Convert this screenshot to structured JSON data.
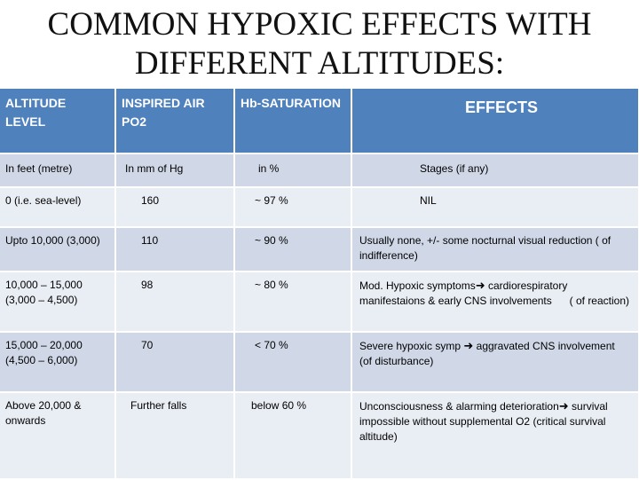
{
  "title": {
    "line1": "COMMON HYPOXIC EFFECTS WITH",
    "line2": "DIFFERENT ALTITUDES:"
  },
  "table": {
    "headers": {
      "altitude": "ALTITUDE LEVEL",
      "po2": "INSPIRED AIR PO2",
      "saturation": "Hb-SATURATION",
      "effects": "EFFECTS"
    },
    "units": {
      "altitude": "In feet (metre)",
      "po2": "In mm of Hg",
      "saturation": "in %",
      "effects": "Stages (if any)"
    },
    "rows": [
      {
        "altitude": "0 (i.e. sea-level)",
        "po2": "160",
        "saturation": "~ 97 %",
        "effect_a": "NIL",
        "effect_b": "",
        "effect_c": ""
      },
      {
        "altitude": "Upto 10,000 (3,000)",
        "po2": "110",
        "saturation": "~ 90 %",
        "effect_a": "Usually none, +/- some nocturnal visual reduction ( of indifference)",
        "effect_b": "",
        "effect_c": ""
      },
      {
        "altitude": "10,000 – 15,000 (3,000 – 4,500)",
        "po2": "98",
        "saturation": "~ 80 %",
        "effect_a": "Mod. Hypoxic symptoms",
        "effect_b": "cardiorespiratory manifestaions & early CNS involvements",
        "effect_c": "( of reaction)"
      },
      {
        "altitude": "15,000 – 20,000 (4,500 – 6,000)",
        "po2": "70",
        "saturation": "< 70 %",
        "effect_a": "Severe hypoxic symp",
        "effect_b": "aggravated CNS involvement (of disturbance)",
        "effect_c": ""
      },
      {
        "altitude": "Above 20,000 & onwards",
        "po2": "Further falls",
        "saturation": "below 60 %",
        "effect_a": "Unconsciousness & alarming deterioration",
        "effect_b": "survival impossible without supplemental O2",
        "effect_c": "(critical survival altitude)"
      }
    ],
    "arrow_icon": "right-arrow-icon"
  }
}
